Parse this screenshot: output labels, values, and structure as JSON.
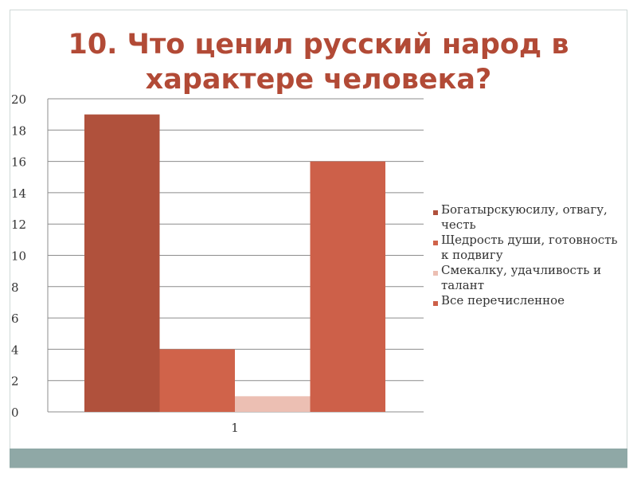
{
  "title": {
    "line1": "10. Что ценил русский народ в",
    "line2": "характере человека?"
  },
  "chart_data": {
    "type": "bar",
    "categories": [
      "1"
    ],
    "series": [
      {
        "name": "Богатырскуюсилу, отвагу, честь",
        "values": [
          19
        ],
        "color": "#b0513c"
      },
      {
        "name": "Щедрость души, готовность к подвигу",
        "values": [
          4
        ],
        "color": "#d0634a"
      },
      {
        "name": "Смекалку, удачливость и талант",
        "values": [
          1
        ],
        "color": "#ecbfb3"
      },
      {
        "name": "Все перечисленное",
        "values": [
          16
        ],
        "color": "#cd6049"
      }
    ],
    "ylim": [
      0,
      20
    ],
    "yticks": [
      "0",
      "2",
      "4",
      "6",
      "8",
      "10",
      "12",
      "14",
      "16",
      "18",
      "20"
    ],
    "grid": true,
    "legend_position": "right"
  }
}
